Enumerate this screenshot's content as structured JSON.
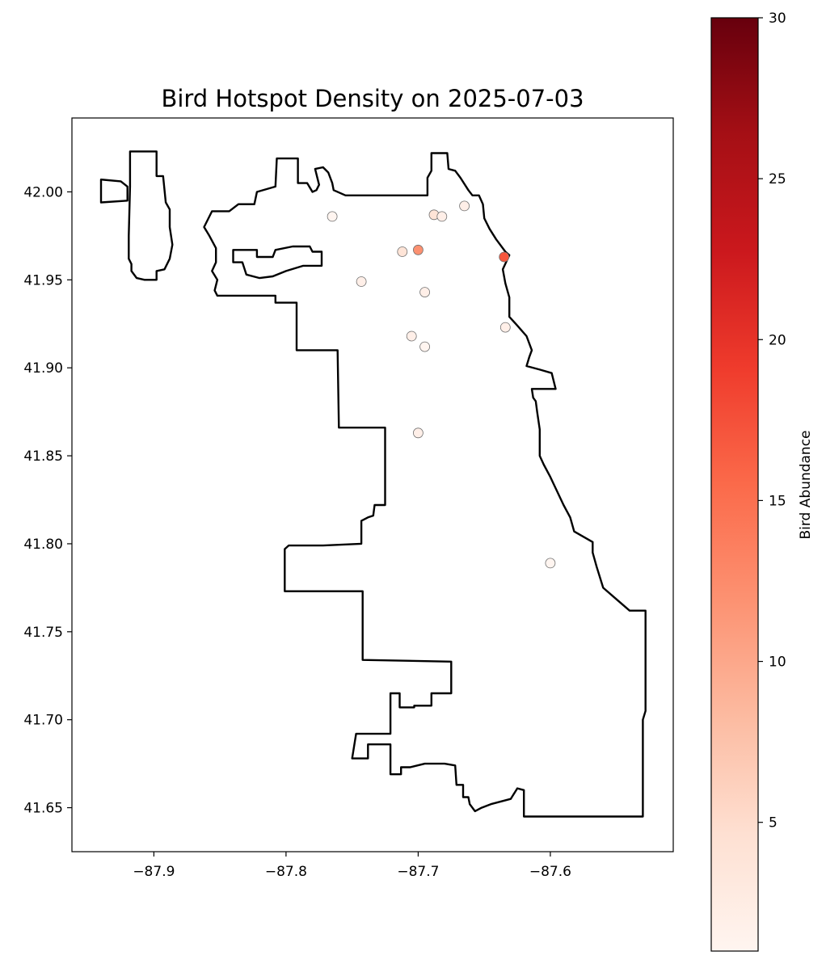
{
  "chart_data": {
    "type": "scatter",
    "title": "Bird Hotspot Density on 2025-07-03",
    "xlabel": "",
    "ylabel": "",
    "xlim": [
      -87.962,
      -87.507
    ],
    "ylim": [
      41.625,
      42.042
    ],
    "x_ticks": [
      -87.9,
      -87.8,
      -87.7,
      -87.6
    ],
    "y_ticks": [
      41.65,
      41.7,
      41.75,
      41.8,
      41.85,
      41.9,
      41.95,
      42.0
    ],
    "x_tick_labels": [
      "−87.9",
      "−87.8",
      "−87.7",
      "−87.6"
    ],
    "y_tick_labels": [
      "41.65",
      "41.70",
      "41.75",
      "41.80",
      "41.85",
      "41.90",
      "41.95",
      "42.00"
    ],
    "grid": false,
    "colorbar": {
      "label": "Bird Abundance",
      "min": 1,
      "max": 30,
      "ticks": [
        5,
        10,
        15,
        20,
        25,
        30
      ],
      "colormap": "Reds",
      "colors": [
        "#fff5f0",
        "#fee0d2",
        "#fcbba1",
        "#fc9272",
        "#fb6a4a",
        "#ef3b2c",
        "#cb181d",
        "#a50f15",
        "#67000d"
      ]
    },
    "points": [
      {
        "x": -87.765,
        "y": 41.986,
        "value": 1
      },
      {
        "x": -87.688,
        "y": 41.987,
        "value": 4
      },
      {
        "x": -87.682,
        "y": 41.986,
        "value": 2
      },
      {
        "x": -87.665,
        "y": 41.992,
        "value": 2
      },
      {
        "x": -87.712,
        "y": 41.966,
        "value": 4
      },
      {
        "x": -87.7,
        "y": 41.967,
        "value": 12
      },
      {
        "x": -87.635,
        "y": 41.963,
        "value": 17
      },
      {
        "x": -87.743,
        "y": 41.949,
        "value": 2
      },
      {
        "x": -87.695,
        "y": 41.943,
        "value": 2
      },
      {
        "x": -87.634,
        "y": 41.923,
        "value": 2
      },
      {
        "x": -87.705,
        "y": 41.918,
        "value": 2
      },
      {
        "x": -87.695,
        "y": 41.912,
        "value": 1
      },
      {
        "x": -87.7,
        "y": 41.863,
        "value": 2
      },
      {
        "x": -87.6,
        "y": 41.789,
        "value": 1
      }
    ],
    "boundary": [
      [
        -87.94,
        42.007
      ],
      [
        -87.925,
        42.006
      ],
      [
        -87.92,
        42.003
      ],
      [
        -87.92,
        41.995
      ],
      [
        -87.94,
        41.994
      ]
    ],
    "boundary_main": [
      [
        -87.918,
        42.023
      ],
      [
        -87.898,
        42.023
      ],
      [
        -87.898,
        42.009
      ],
      [
        -87.893,
        42.009
      ],
      [
        -87.891,
        41.994
      ],
      [
        -87.888,
        41.99
      ],
      [
        -87.888,
        41.98
      ],
      [
        -87.886,
        41.97
      ],
      [
        -87.888,
        41.962
      ],
      [
        -87.892,
        41.956
      ],
      [
        -87.898,
        41.955
      ],
      [
        -87.898,
        41.95
      ],
      [
        -87.907,
        41.95
      ],
      [
        -87.913,
        41.951
      ],
      [
        -87.917,
        41.955
      ],
      [
        -87.917,
        41.959
      ],
      [
        -87.919,
        41.962
      ],
      [
        -87.919,
        41.975
      ],
      [
        -87.918,
        42.003
      ],
      [
        -87.918,
        42.023
      ]
    ],
    "boundary_city": [
      [
        -87.807,
        42.019
      ],
      [
        -87.791,
        42.019
      ],
      [
        -87.791,
        42.005
      ],
      [
        -87.784,
        42.005
      ],
      [
        -87.78,
        42.0
      ],
      [
        -87.777,
        42.001
      ],
      [
        -87.775,
        42.004
      ],
      [
        -87.778,
        42.013
      ],
      [
        -87.772,
        42.014
      ],
      [
        -87.768,
        42.011
      ],
      [
        -87.765,
        42.005
      ],
      [
        -87.764,
        42.001
      ],
      [
        -87.755,
        41.998
      ],
      [
        -87.7,
        41.998
      ],
      [
        -87.693,
        41.998
      ],
      [
        -87.693,
        42.008
      ],
      [
        -87.69,
        42.012
      ],
      [
        -87.69,
        42.022
      ],
      [
        -87.683,
        42.022
      ],
      [
        -87.678,
        42.022
      ],
      [
        -87.677,
        42.013
      ],
      [
        -87.672,
        42.012
      ],
      [
        -87.668,
        42.008
      ],
      [
        -87.662,
        42.001
      ],
      [
        -87.659,
        41.998
      ],
      [
        -87.654,
        41.998
      ],
      [
        -87.651,
        41.993
      ],
      [
        -87.65,
        41.985
      ],
      [
        -87.646,
        41.979
      ],
      [
        -87.641,
        41.973
      ],
      [
        -87.634,
        41.966
      ],
      [
        -87.631,
        41.964
      ],
      [
        -87.636,
        41.956
      ],
      [
        -87.634,
        41.948
      ],
      [
        -87.631,
        41.94
      ],
      [
        -87.631,
        41.929
      ],
      [
        -87.625,
        41.924
      ],
      [
        -87.618,
        41.918
      ],
      [
        -87.614,
        41.91
      ],
      [
        -87.616,
        41.906
      ],
      [
        -87.618,
        41.901
      ],
      [
        -87.608,
        41.899
      ],
      [
        -87.599,
        41.897
      ],
      [
        -87.596,
        41.888
      ],
      [
        -87.614,
        41.888
      ],
      [
        -87.613,
        41.883
      ],
      [
        -87.611,
        41.881
      ],
      [
        -87.61,
        41.875
      ],
      [
        -87.608,
        41.865
      ],
      [
        -87.608,
        41.85
      ],
      [
        -87.605,
        41.845
      ],
      [
        -87.6,
        41.838
      ],
      [
        -87.595,
        41.83
      ],
      [
        -87.59,
        41.822
      ],
      [
        -87.585,
        41.815
      ],
      [
        -87.582,
        41.807
      ],
      [
        -87.568,
        41.801
      ],
      [
        -87.568,
        41.795
      ],
      [
        -87.565,
        41.787
      ],
      [
        -87.56,
        41.775
      ],
      [
        -87.54,
        41.762
      ],
      [
        -87.528,
        41.762
      ],
      [
        -87.528,
        41.705
      ],
      [
        -87.53,
        41.7
      ],
      [
        -87.53,
        41.645
      ],
      [
        -87.62,
        41.645
      ],
      [
        -87.62,
        41.653
      ],
      [
        -87.62,
        41.66
      ],
      [
        -87.625,
        41.661
      ],
      [
        -87.63,
        41.655
      ],
      [
        -87.645,
        41.652
      ],
      [
        -87.652,
        41.65
      ],
      [
        -87.657,
        41.648
      ],
      [
        -87.661,
        41.652
      ],
      [
        -87.662,
        41.656
      ],
      [
        -87.666,
        41.656
      ],
      [
        -87.666,
        41.663
      ],
      [
        -87.671,
        41.663
      ],
      [
        -87.672,
        41.674
      ],
      [
        -87.68,
        41.675
      ],
      [
        -87.695,
        41.675
      ],
      [
        -87.706,
        41.673
      ],
      [
        -87.713,
        41.673
      ],
      [
        -87.713,
        41.669
      ],
      [
        -87.721,
        41.669
      ],
      [
        -87.721,
        41.686
      ],
      [
        -87.738,
        41.686
      ],
      [
        -87.738,
        41.678
      ],
      [
        -87.75,
        41.678
      ],
      [
        -87.747,
        41.692
      ],
      [
        -87.721,
        41.692
      ],
      [
        -87.721,
        41.715
      ],
      [
        -87.714,
        41.715
      ],
      [
        -87.714,
        41.707
      ],
      [
        -87.703,
        41.707
      ],
      [
        -87.703,
        41.708
      ],
      [
        -87.69,
        41.708
      ],
      [
        -87.69,
        41.715
      ],
      [
        -87.675,
        41.715
      ],
      [
        -87.675,
        41.733
      ],
      [
        -87.742,
        41.734
      ],
      [
        -87.742,
        41.741
      ],
      [
        -87.742,
        41.773
      ],
      [
        -87.801,
        41.773
      ],
      [
        -87.801,
        41.797
      ],
      [
        -87.798,
        41.799
      ],
      [
        -87.772,
        41.799
      ],
      [
        -87.743,
        41.8
      ],
      [
        -87.743,
        41.813
      ],
      [
        -87.738,
        41.815
      ],
      [
        -87.734,
        41.816
      ],
      [
        -87.733,
        41.822
      ],
      [
        -87.725,
        41.822
      ],
      [
        -87.725,
        41.835
      ],
      [
        -87.725,
        41.866
      ],
      [
        -87.76,
        41.866
      ],
      [
        -87.761,
        41.91
      ],
      [
        -87.792,
        41.91
      ],
      [
        -87.792,
        41.937
      ],
      [
        -87.808,
        41.937
      ],
      [
        -87.808,
        41.941
      ],
      [
        -87.852,
        41.941
      ],
      [
        -87.854,
        41.944
      ],
      [
        -87.852,
        41.95
      ],
      [
        -87.856,
        41.955
      ],
      [
        -87.853,
        41.96
      ],
      [
        -87.853,
        41.968
      ],
      [
        -87.858,
        41.975
      ],
      [
        -87.862,
        41.98
      ],
      [
        -87.856,
        41.989
      ],
      [
        -87.843,
        41.989
      ],
      [
        -87.836,
        41.993
      ],
      [
        -87.824,
        41.993
      ],
      [
        -87.822,
        42.0
      ],
      [
        -87.808,
        42.003
      ],
      [
        -87.807,
        42.019
      ]
    ],
    "boundary_hole": [
      [
        -87.84,
        41.967
      ],
      [
        -87.822,
        41.967
      ],
      [
        -87.822,
        41.963
      ],
      [
        -87.81,
        41.963
      ],
      [
        -87.808,
        41.967
      ],
      [
        -87.795,
        41.969
      ],
      [
        -87.782,
        41.969
      ],
      [
        -87.78,
        41.966
      ],
      [
        -87.773,
        41.966
      ],
      [
        -87.773,
        41.958
      ],
      [
        -87.787,
        41.958
      ],
      [
        -87.8,
        41.955
      ],
      [
        -87.81,
        41.952
      ],
      [
        -87.82,
        41.951
      ],
      [
        -87.83,
        41.953
      ],
      [
        -87.833,
        41.96
      ],
      [
        -87.84,
        41.96
      ],
      [
        -87.84,
        41.967
      ]
    ]
  }
}
